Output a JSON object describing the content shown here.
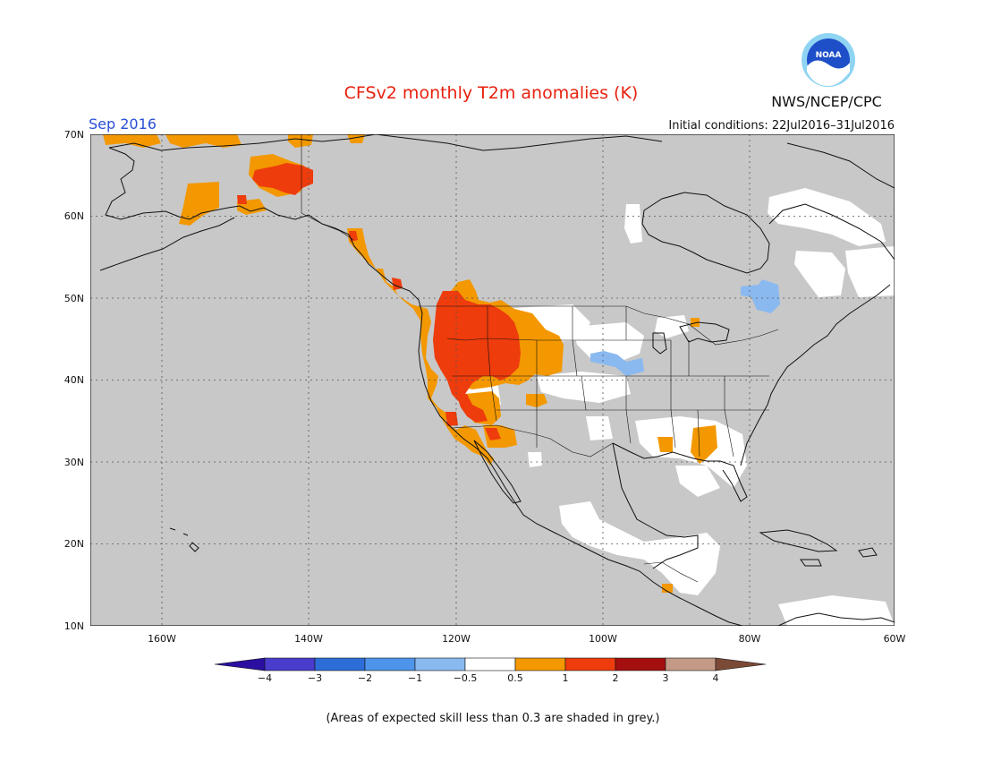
{
  "title": "CFSv2 monthly T2m anomalies (K)",
  "period": "Sep 2016",
  "agency": "NWS/NCEP/CPC",
  "logo_text": "NOAA",
  "initial_conditions": "Initial conditions: 22Jul2016–31Jul2016",
  "footnote": "(Areas of expected skill less than 0.3 are shaded in grey.)",
  "map": {
    "lon_ticks": [
      "160W",
      "140W",
      "120W",
      "100W",
      "80W",
      "60W"
    ],
    "lat_ticks": [
      "70N",
      "60N",
      "50N",
      "40N",
      "30N",
      "20N",
      "10N"
    ],
    "colors": {
      "low_skill_grey": "#c8c8c8",
      "neutral": "#ffffff",
      "land_border": "#111111"
    }
  },
  "colorbar": {
    "labels": [
      "−4",
      "−3",
      "−2",
      "−1",
      "−0.5",
      "0.5",
      "1",
      "2",
      "3",
      "4"
    ],
    "colors": [
      "#2a0fa0",
      "#4a3ccc",
      "#2d6dd8",
      "#4d94ea",
      "#8ab9f0",
      "#ffffff",
      "#f39800",
      "#ee3c0c",
      "#a50f0f",
      "#c49a86",
      "#7b4a36"
    ]
  },
  "anomaly_regions": {
    "warm_0.5_to_1": [
      "Alaska interior",
      "Northern Great Plains",
      "Great Basin edges",
      "Gulf Coast",
      "Pacific Northwest coast"
    ],
    "warm_1_to_2": [
      "Northern Rockies",
      "Great Basin",
      "Northern California",
      "Alaska interior",
      "Southern Arizona"
    ],
    "cool_minus1_to_minus0.5": [
      "Quebec",
      "Central Plains"
    ]
  }
}
